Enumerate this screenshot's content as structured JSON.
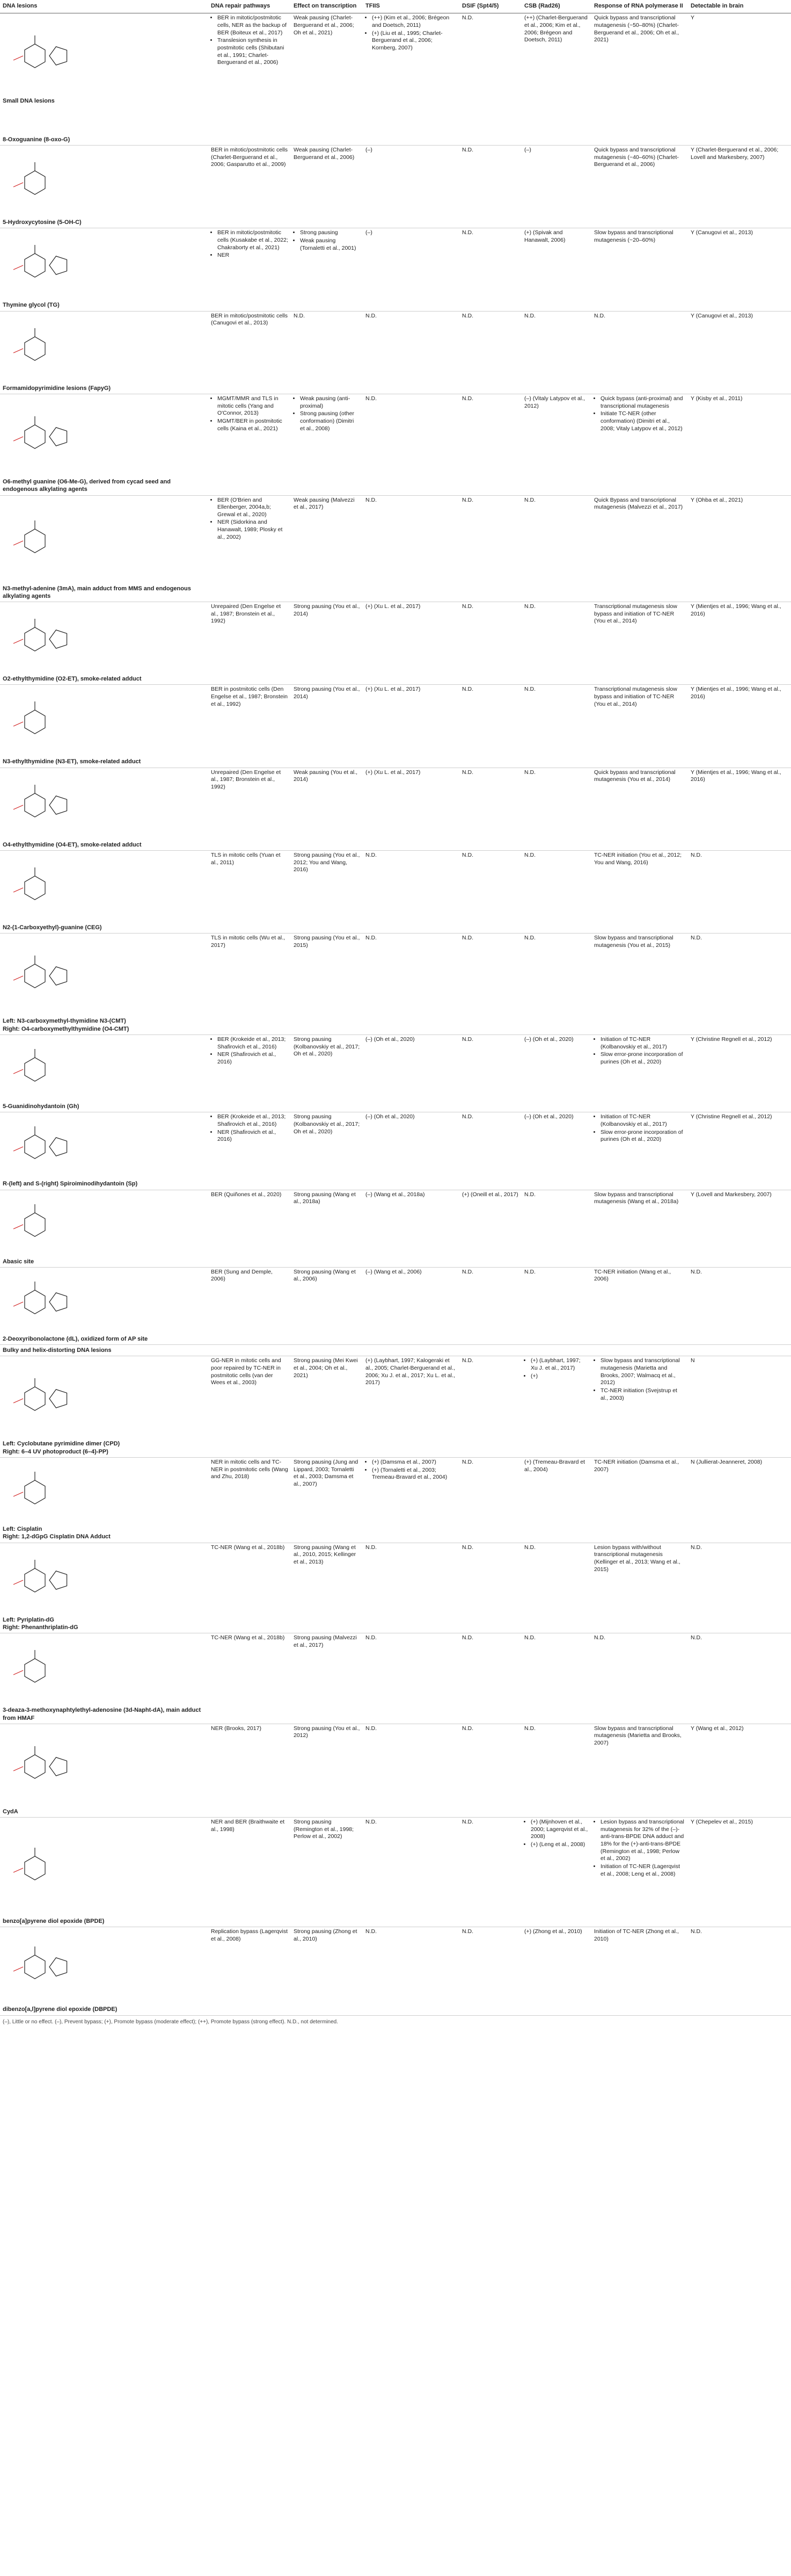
{
  "headers": {
    "lesion": "DNA lesions",
    "repair": "DNA repair pathways",
    "transcription": "Effect on transcription",
    "tfiis": "TFIIS",
    "dsif": "DSIF (Spt4/5)",
    "csb": "CSB (Rad26)",
    "response": "Response of RNA polymerase II",
    "brain": "Detectable in brain"
  },
  "rows": [
    {
      "name": "Small DNA lesions\n\n\n\n\n8-Oxoguanine (8-oxo-G)",
      "repair": [
        "BER in mitotic/postmitotic cells, NER as the backup of BER (Boiteux et al., 2017)",
        "Translesion synthesis in postmitotic cells (Shibutani et al., 1991; Charlet-Berguerand et al., 2006)"
      ],
      "transcription": "Weak pausing (Charlet-Berguerand et al., 2006; Oh et al., 2021)",
      "tfiis": [
        "(++) (Kim et al., 2006; Brégeon and Doetsch, 2011)",
        "(+) (Liu et al., 1995; Charlet-Berguerand et al., 2006; Kornberg, 2007)"
      ],
      "dsif": "N.D.",
      "csb": "(++) (Charlet-Berguerand et al., 2006; Kim et al., 2006; Brégeon and Doetsch, 2011)",
      "response": "Quick bypass and transcriptional mutagenesis (~50–80%) (Charlet-Berguerand et al., 2006; Oh et al., 2021)",
      "brain": "Y"
    },
    {
      "name": "5-Hydroxycytosine (5-OH-C)",
      "repair": "BER in mitotic/postmitotic cells (Charlet-Berguerand et al., 2006; Gasparutto et al., 2009)",
      "transcription": "Weak pausing (Charlet-Berguerand et al., 2006)",
      "tfiis": "(–)",
      "dsif": "N.D.",
      "csb": "(–)",
      "response": "Quick bypass and transcriptional mutagenesis (~40–60%) (Charlet-Berguerand et al., 2006)",
      "brain": "Y (Charlet-Berguerand et al., 2006; Lovell and Markesbery, 2007)"
    },
    {
      "name": "Thymine glycol (TG)",
      "repair": [
        "BER in mitotic/postmitotic cells (Kusakabe et al., 2022; Chakraborty et al., 2021)",
        "NER"
      ],
      "transcription": [
        "Strong pausing",
        "Weak pausing (Tornaletti et al., 2001)"
      ],
      "tfiis": "(–)",
      "dsif": "N.D.",
      "csb": "(+) (Spivak and Hanawalt, 2006)",
      "response": "Slow bypass and transcriptional mutagenesis (~20–60%)",
      "brain": "Y (Canugovi et al., 2013)"
    },
    {
      "name": "Formamidopyrimidine lesions (FapyG)",
      "repair": "BER in mitotic/postmitotic cells (Canugovi et al., 2013)",
      "transcription": "N.D.",
      "tfiis": "N.D.",
      "dsif": "N.D.",
      "csb": "N.D.",
      "response": "N.D.",
      "brain": "Y (Canugovi et al., 2013)"
    },
    {
      "name": "O6-methyl guanine (O6-Me-G), derived from cycad seed and endogenous alkylating agents",
      "repair": [
        "MGMT/MMR and TLS in mitotic cells (Yang and O'Connor, 2013)",
        "MGMT/BER in postmitotic cells (Kaina et al., 2021)"
      ],
      "transcription": [
        "Weak pausing (anti-proximal)",
        "Strong pausing (other conformation) (Dimitri et al., 2008)"
      ],
      "tfiis": "N.D.",
      "dsif": "N.D.",
      "csb": "(–) (Vitaly Latypov et al., 2012)",
      "response": [
        "Quick bypass (anti-proximal) and transcriptional mutagenesis",
        "Initiate TC-NER (other conformation) (Dimitri et al., 2008; Vitaly Latypov et al., 2012)"
      ],
      "brain": "Y (Kisby et al., 2011)"
    },
    {
      "name": "N3-methyl-adenine (3mA), main adduct from MMS and endogenous alkylating agents",
      "repair": [
        "BER (O'Brien and Ellenberger, 2004a,b; Grewal et al., 2020)",
        "NER (Sidorkina and Hanawalt, 1989; Plosky et al., 2002)"
      ],
      "transcription": "Weak pausing (Malvezzi et al., 2017)",
      "tfiis": "N.D.",
      "dsif": "N.D.",
      "csb": "N.D.",
      "response": "Quick Bypass and transcriptional mutagenesis (Malvezzi et al., 2017)",
      "brain": "Y (Ohba et al., 2021)"
    },
    {
      "name": "O2-ethylthymidine (O2-ET), smoke-related adduct",
      "repair": "Unrepaired (Den Engelse et al., 1987; Bronstein et al., 1992)",
      "transcription": "Strong pausing (You et al., 2014)",
      "tfiis": "(+) (Xu L. et al., 2017)",
      "dsif": "N.D.",
      "csb": "N.D.",
      "response": "Transcriptional mutagenesis slow bypass and initiation of TC-NER (You et al., 2014)",
      "brain": "Y (Mientjes et al., 1996; Wang et al., 2016)"
    },
    {
      "name": "N3-ethylthymidine (N3-ET), smoke-related adduct",
      "repair": "BER in postmitotic cells (Den Engelse et al., 1987; Bronstein et al., 1992)",
      "transcription": "Strong pausing (You et al., 2014)",
      "tfiis": "(+) (Xu L. et al., 2017)",
      "dsif": "N.D.",
      "csb": "N.D.",
      "response": "Transcriptional mutagenesis slow bypass and initiation of TC-NER (You et al., 2014)",
      "brain": "Y (Mientjes et al., 1996; Wang et al., 2016)"
    },
    {
      "name": "O4-ethylthymidine (O4-ET), smoke-related adduct",
      "repair": "Unrepaired (Den Engelse et al., 1987; Bronstein et al., 1992)",
      "transcription": "Weak pausing (You et al., 2014)",
      "tfiis": "(+) (Xu L. et al., 2017)",
      "dsif": "N.D.",
      "csb": "N.D.",
      "response": "Quick bypass and transcriptional mutagenesis (You et al., 2014)",
      "brain": "Y (Mientjes et al., 1996; Wang et al., 2016)"
    },
    {
      "name": "N2-(1-Carboxyethyl)-guanine (CEG)",
      "repair": "TLS in mitotic cells (Yuan et al., 2011)",
      "transcription": "Strong pausing (You et al., 2012; You and Wang, 2016)",
      "tfiis": "N.D.",
      "dsif": "N.D.",
      "csb": "N.D.",
      "response": "TC-NER initiation (You et al., 2012; You and Wang, 2016)",
      "brain": "N.D."
    },
    {
      "name": "Left: N3-carboxymethyl-thymidine N3-(CMT)\nRight: O4-carboxymethylthymidine (O4-CMT)",
      "repair": "TLS in mitotic cells (Wu et al., 2017)",
      "transcription": "Strong pausing (You et al., 2015)",
      "tfiis": "N.D.",
      "dsif": "N.D.",
      "csb": "N.D.",
      "response": "Slow bypass and transcriptional mutagenesis (You et al., 2015)",
      "brain": "N.D."
    },
    {
      "name": "5-Guanidinohydantoin (Gh)",
      "repair": [
        "BER (Krokeide et al., 2013; Shafirovich et al., 2016)",
        "NER (Shafirovich et al., 2016)"
      ],
      "transcription": "Strong pausing (Kolbanovskiy et al., 2017; Oh et al., 2020)",
      "tfiis": "(–) (Oh et al., 2020)",
      "dsif": "N.D.",
      "csb": "(–) (Oh et al., 2020)",
      "response": [
        "Initiation of TC-NER (Kolbanovskiy et al., 2017)",
        "Slow error-prone incorporation of purines (Oh et al., 2020)"
      ],
      "brain": "Y (Christine Regnell et al., 2012)"
    },
    {
      "name": "R-(left) and S-(right) Spiroiminodihydantoin (Sp)",
      "repair": [
        "BER (Krokeide et al., 2013; Shafirovich et al., 2016)",
        "NER (Shafirovich et al., 2016)"
      ],
      "transcription": "Strong pausing (Kolbanovskiy et al., 2017; Oh et al., 2020)",
      "tfiis": "(–) (Oh et al., 2020)",
      "dsif": "N.D.",
      "csb": "(–) (Oh et al., 2020)",
      "response": [
        "Initiation of TC-NER (Kolbanovskiy et al., 2017)",
        "Slow error-prone incorporation of purines (Oh et al., 2020)"
      ],
      "brain": "Y (Christine Regnell et al., 2012)"
    },
    {
      "name": "Abasic site",
      "repair": "BER (Quiñones et al., 2020)",
      "transcription": "Strong pausing (Wang et al., 2018a)",
      "tfiis": "(–) (Wang et al., 2018a)",
      "dsif": "(+) (Oneill et al., 2017)",
      "csb": "N.D.",
      "response": "Slow bypass and transcriptional mutagenesis (Wang et al., 2018a)",
      "brain": "Y (Lovell and Markesbery, 2007)"
    },
    {
      "name": "2-Deoxyribonolactone (dL), oxidized form of AP site",
      "repair": "BER (Sung and Demple, 2006)",
      "transcription": "Strong pausing (Wang et al., 2006)",
      "tfiis": "(–) (Wang et al., 2006)",
      "dsif": "N.D.",
      "csb": "N.D.",
      "response": "TC-NER initiation (Wang et al., 2006)",
      "brain": "N.D."
    },
    {
      "section": "Bulky and helix-distorting DNA lesions"
    },
    {
      "name": "Left: Cyclobutane pyrimidine dimer (CPD)\nRight: 6–4 UV photoproduct (6–4)-PP)",
      "repair": "GG-NER in mitotic cells and poor repaired by TC-NER in postmitotic cells (van der Wees et al., 2003)",
      "transcription": "Strong pausing (Mei Kwei et al., 2004; Oh et al., 2021)",
      "tfiis": "(+) (Laybhart, 1997; Kalogeraki et al., 2005; Charlet-Berguerand et al., 2006; Xu J. et al., 2017; Xu L. et al., 2017)",
      "dsif": "N.D.",
      "csb": [
        "(+) (Laybhart, 1997; Xu J. et al., 2017)",
        "(+)"
      ],
      "response": [
        "Slow bypass and transcriptional mutagenesis (Marietta and Brooks, 2007; Walmacq et al., 2012)",
        "TC-NER initiation (Svejstrup et al., 2003)"
      ],
      "brain": "N"
    },
    {
      "name": "Left: Cisplatin\nRight: 1,2-dGpG Cisplatin DNA Adduct",
      "repair": "NER in mitotic cells and TC-NER in postmitotic cells (Wang and Zhu, 2018)",
      "transcription": "Strong pausing (Jung and Lippard, 2003; Tornaletti et al., 2003; Damsma et al., 2007)",
      "tfiis": [
        "(+) (Damsma et al., 2007)",
        "(+) (Tornaletti et al., 2003; Tremeau-Bravard et al., 2004)"
      ],
      "dsif": "N.D.",
      "csb": "(+) (Tremeau-Bravard et al., 2004)",
      "response": "TC-NER initiation (Damsma et al., 2007)",
      "brain": "N (Jullierat-Jeanneret, 2008)"
    },
    {
      "name": "Left: Pyriplatin-dG\nRight: Phenanthriplatin-dG",
      "repair": "TC-NER (Wang et al., 2018b)",
      "transcription": "Strong pausing (Wang et al., 2010, 2015; Kellinger et al., 2013)",
      "tfiis": "N.D.",
      "dsif": "N.D.",
      "csb": "N.D.",
      "response": "Lesion bypass with/without transcriptional mutagenesis (Kellinger et al., 2013; Wang et al., 2015)",
      "brain": "N.D."
    },
    {
      "name": "3-deaza-3-methoxynaphtylethyl-adenosine (3d-Napht-dA), main adduct from HMAF",
      "repair": "TC-NER (Wang et al., 2018b)",
      "transcription": "Strong pausing (Malvezzi et al., 2017)",
      "tfiis": "N.D.",
      "dsif": "N.D.",
      "csb": "N.D.",
      "response": "N.D.",
      "brain": "N.D."
    },
    {
      "name": "CydA",
      "repair": "NER (Brooks, 2017)",
      "transcription": "Strong pausing (You et al., 2012)",
      "tfiis": "N.D.",
      "dsif": "N.D.",
      "csb": "N.D.",
      "response": "Slow bypass and transcriptional mutagenesis (Marietta and Brooks, 2007)",
      "brain": "Y (Wang et al., 2012)"
    },
    {
      "name": "benzo[a]pyrene diol epoxide (BPDE)",
      "repair": "NER and BER (Braithwaite et al., 1998)",
      "transcription": "Strong pausing (Remington et al., 1998; Perlow et al., 2002)",
      "tfiis": "N.D.",
      "dsif": "N.D.",
      "csb": [
        "(+) (Mijnhoven et al., 2000; Lagerqvist et al., 2008)",
        "(+) (Leng et al., 2008)"
      ],
      "response": [
        "Lesion bypass and transcriptional mutagenesis for 32% of the (–)-anti-trans-BPDE DNA adduct and 18% for the (+)-anti-trans-BPDE (Remington et al., 1998; Perlow et al., 2002)",
        "Initiation of TC-NER (Lagerqvist et al., 2008; Leng et al., 2008)"
      ],
      "brain": "Y (Chepelev et al., 2015)"
    },
    {
      "name": "dibenzo[a,l]pyrene diol epoxide (DBPDE)",
      "repair": "Replication bypass (Lagerqvist et al., 2008)",
      "transcription": "Strong pausing (Zhong et al., 2010)",
      "tfiis": "N.D.",
      "dsif": "N.D.",
      "csb": "(+) (Zhong et al., 2010)",
      "response": "Initiation of TC-NER (Zhong et al., 2010)",
      "brain": "N.D."
    }
  ],
  "footnote": "(–), Little or no effect. (–), Prevent bypass; (+), Promote bypass (moderate effect); (++), Promote bypass (strong effect). N.D., not determined."
}
